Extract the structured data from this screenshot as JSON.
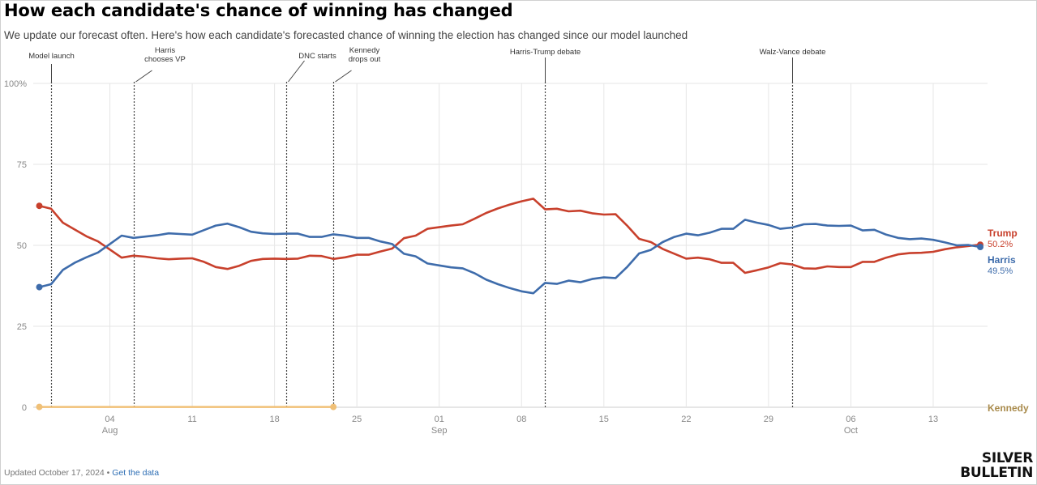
{
  "header": {
    "title": "How each candidate's chance of winning has changed",
    "subtitle": "We update our forecast often. Here's how each candidate's forecasted chance of winning the election has changed since our model launched"
  },
  "footer": {
    "updated_text": "Updated October 17, 2024 • ",
    "link_text": "Get the data"
  },
  "logo": {
    "line1": "SILVER",
    "line2": "BULLETIN"
  },
  "colors": {
    "trump": "#c8402c",
    "harris": "#3e6cab",
    "kennedy": "#f0c077",
    "kennedy_label": "#a88a4b",
    "grid": "#e6e6e6",
    "axis_text": "#888888",
    "event_line": "#444444"
  },
  "chart_data": {
    "type": "line",
    "title": "How each candidate's chance of winning has changed",
    "xlabel": "",
    "ylabel": "",
    "ylim": [
      0,
      100
    ],
    "xlim": [
      "2024-07-29",
      "2024-10-17"
    ],
    "y_ticks": [
      {
        "value": 100,
        "label": "100%"
      },
      {
        "value": 75,
        "label": "75"
      },
      {
        "value": 50,
        "label": "50"
      },
      {
        "value": 25,
        "label": "25"
      },
      {
        "value": 0,
        "label": "0"
      }
    ],
    "x_ticks": [
      {
        "date": "2024-08-04",
        "label": "04",
        "month": "Aug"
      },
      {
        "date": "2024-08-11",
        "label": "11",
        "month": ""
      },
      {
        "date": "2024-08-18",
        "label": "18",
        "month": ""
      },
      {
        "date": "2024-08-25",
        "label": "25",
        "month": ""
      },
      {
        "date": "2024-09-01",
        "label": "01",
        "month": "Sep"
      },
      {
        "date": "2024-09-08",
        "label": "08",
        "month": ""
      },
      {
        "date": "2024-09-15",
        "label": "15",
        "month": ""
      },
      {
        "date": "2024-09-22",
        "label": "22",
        "month": ""
      },
      {
        "date": "2024-09-29",
        "label": "29",
        "month": ""
      },
      {
        "date": "2024-10-06",
        "label": "06",
        "month": "Oct"
      },
      {
        "date": "2024-10-13",
        "label": "13",
        "month": ""
      }
    ],
    "grid": true,
    "legend": "inline-right",
    "events": [
      {
        "date": "2024-07-30",
        "label": [
          "Model launch"
        ],
        "anchor": "left"
      },
      {
        "date": "2024-08-06",
        "label": [
          "Harris",
          "chooses VP"
        ],
        "anchor": "diagonal"
      },
      {
        "date": "2024-08-19",
        "label": [
          "DNC starts"
        ],
        "anchor": "diagonal"
      },
      {
        "date": "2024-08-23",
        "label": [
          "Kennedy",
          "drops out"
        ],
        "anchor": "diagonal"
      },
      {
        "date": "2024-09-10",
        "label": [
          "Harris-Trump debate"
        ],
        "anchor": "center"
      },
      {
        "date": "2024-10-01",
        "label": [
          "Walz-Vance debate"
        ],
        "anchor": "center"
      }
    ],
    "series": [
      {
        "name": "Trump",
        "color": "#c8402c",
        "end_label": "50.2%",
        "x": [
          "2024-07-29",
          "2024-07-30",
          "2024-07-31",
          "2024-08-01",
          "2024-08-02",
          "2024-08-03",
          "2024-08-04",
          "2024-08-05",
          "2024-08-06",
          "2024-08-07",
          "2024-08-08",
          "2024-08-09",
          "2024-08-10",
          "2024-08-11",
          "2024-08-12",
          "2024-08-13",
          "2024-08-14",
          "2024-08-15",
          "2024-08-16",
          "2024-08-17",
          "2024-08-18",
          "2024-08-19",
          "2024-08-20",
          "2024-08-21",
          "2024-08-22",
          "2024-08-23",
          "2024-08-24",
          "2024-08-25",
          "2024-08-26",
          "2024-08-27",
          "2024-08-28",
          "2024-08-29",
          "2024-08-30",
          "2024-08-31",
          "2024-09-01",
          "2024-09-02",
          "2024-09-03",
          "2024-09-04",
          "2024-09-05",
          "2024-09-06",
          "2024-09-07",
          "2024-09-08",
          "2024-09-09",
          "2024-09-10",
          "2024-09-11",
          "2024-09-12",
          "2024-09-13",
          "2024-09-14",
          "2024-09-15",
          "2024-09-16",
          "2024-09-17",
          "2024-09-18",
          "2024-09-19",
          "2024-09-20",
          "2024-09-21",
          "2024-09-22",
          "2024-09-23",
          "2024-09-24",
          "2024-09-25",
          "2024-09-26",
          "2024-09-27",
          "2024-09-28",
          "2024-09-29",
          "2024-09-30",
          "2024-10-01",
          "2024-10-02",
          "2024-10-03",
          "2024-10-04",
          "2024-10-05",
          "2024-10-06",
          "2024-10-07",
          "2024-10-08",
          "2024-10-09",
          "2024-10-10",
          "2024-10-11",
          "2024-10-12",
          "2024-10-13",
          "2024-10-14",
          "2024-10-15",
          "2024-10-16",
          "2024-10-17"
        ],
        "values": [
          62.2,
          61.3,
          57.0,
          54.9,
          52.8,
          51.2,
          48.7,
          46.2,
          46.8,
          46.5,
          46.0,
          45.7,
          45.9,
          46.0,
          44.9,
          43.3,
          42.7,
          43.7,
          45.2,
          45.8,
          45.9,
          45.8,
          45.9,
          46.8,
          46.7,
          45.8,
          46.3,
          47.1,
          47.1,
          48.1,
          49.0,
          52.2,
          53.0,
          55.1,
          55.6,
          56.1,
          56.5,
          58.2,
          60.0,
          61.4,
          62.6,
          63.6,
          64.4,
          61.1,
          61.3,
          60.5,
          60.7,
          59.9,
          59.5,
          59.6,
          56.0,
          52.0,
          51.0,
          48.9,
          47.4,
          45.9,
          46.2,
          45.7,
          44.6,
          44.6,
          41.5,
          42.3,
          43.2,
          44.5,
          44.1,
          42.9,
          42.8,
          43.5,
          43.3,
          43.3,
          44.9,
          44.9,
          46.2,
          47.2,
          47.6,
          47.7,
          48.0,
          48.8,
          49.4,
          49.8,
          50.2
        ]
      },
      {
        "name": "Harris",
        "color": "#3e6cab",
        "end_label": "49.5%",
        "x": [
          "2024-07-29",
          "2024-07-30",
          "2024-07-31",
          "2024-08-01",
          "2024-08-02",
          "2024-08-03",
          "2024-08-04",
          "2024-08-05",
          "2024-08-06",
          "2024-08-07",
          "2024-08-08",
          "2024-08-09",
          "2024-08-10",
          "2024-08-11",
          "2024-08-12",
          "2024-08-13",
          "2024-08-14",
          "2024-08-15",
          "2024-08-16",
          "2024-08-17",
          "2024-08-18",
          "2024-08-19",
          "2024-08-20",
          "2024-08-21",
          "2024-08-22",
          "2024-08-23",
          "2024-08-24",
          "2024-08-25",
          "2024-08-26",
          "2024-08-27",
          "2024-08-28",
          "2024-08-29",
          "2024-08-30",
          "2024-08-31",
          "2024-09-01",
          "2024-09-02",
          "2024-09-03",
          "2024-09-04",
          "2024-09-05",
          "2024-09-06",
          "2024-09-07",
          "2024-09-08",
          "2024-09-09",
          "2024-09-10",
          "2024-09-11",
          "2024-09-12",
          "2024-09-13",
          "2024-09-14",
          "2024-09-15",
          "2024-09-16",
          "2024-09-17",
          "2024-09-18",
          "2024-09-19",
          "2024-09-20",
          "2024-09-21",
          "2024-09-22",
          "2024-09-23",
          "2024-09-24",
          "2024-09-25",
          "2024-09-26",
          "2024-09-27",
          "2024-09-28",
          "2024-09-29",
          "2024-09-30",
          "2024-10-01",
          "2024-10-02",
          "2024-10-03",
          "2024-10-04",
          "2024-10-05",
          "2024-10-06",
          "2024-10-07",
          "2024-10-08",
          "2024-10-09",
          "2024-10-10",
          "2024-10-11",
          "2024-10-12",
          "2024-10-13",
          "2024-10-14",
          "2024-10-15",
          "2024-10-16",
          "2024-10-17"
        ],
        "values": [
          37.1,
          38.0,
          42.4,
          44.6,
          46.3,
          47.8,
          50.4,
          53.0,
          52.3,
          52.7,
          53.1,
          53.7,
          53.5,
          53.3,
          54.7,
          56.1,
          56.7,
          55.6,
          54.2,
          53.7,
          53.5,
          53.6,
          53.6,
          52.6,
          52.6,
          53.4,
          53.0,
          52.3,
          52.3,
          51.2,
          50.4,
          47.4,
          46.6,
          44.4,
          43.8,
          43.2,
          42.9,
          41.4,
          39.4,
          38.0,
          36.8,
          35.8,
          35.2,
          38.4,
          38.1,
          39.1,
          38.6,
          39.6,
          40.1,
          39.9,
          43.4,
          47.5,
          48.6,
          51.0,
          52.6,
          53.6,
          53.1,
          53.9,
          55.1,
          55.1,
          57.9,
          57.0,
          56.3,
          55.1,
          55.5,
          56.5,
          56.6,
          56.1,
          56.0,
          56.1,
          54.6,
          54.8,
          53.3,
          52.3,
          51.9,
          52.1,
          51.7,
          50.9,
          50.0,
          50.1,
          49.5
        ]
      },
      {
        "name": "Kennedy",
        "color": "#f0c077",
        "end_label": "",
        "x": [
          "2024-07-29",
          "2024-08-23"
        ],
        "values": [
          0.1,
          0.1
        ]
      }
    ]
  }
}
